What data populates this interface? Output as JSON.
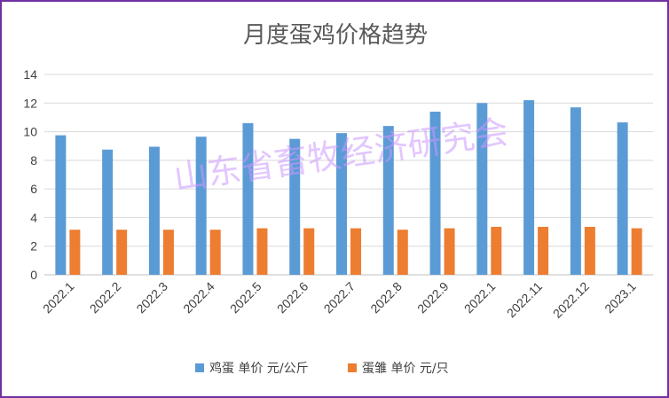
{
  "chart_data": {
    "type": "bar",
    "title": "月度蛋鸡价格趋势",
    "watermark": "山东省畜牧经济研究会",
    "categories": [
      "2022.1",
      "2022.2",
      "2022.3",
      "2022.4",
      "2022.5",
      "2022.6",
      "2022.7",
      "2022.8",
      "2022.9",
      "2022.1",
      "2022.11",
      "2022.12",
      "2023.1"
    ],
    "series": [
      {
        "name": "鸡蛋 单价 元/公斤",
        "color": "#5b9bd5",
        "values": [
          9.75,
          8.75,
          8.95,
          9.65,
          10.6,
          9.5,
          9.9,
          10.4,
          11.4,
          12.0,
          12.2,
          11.7,
          10.65
        ]
      },
      {
        "name": "蛋雏 单价 元/只",
        "color": "#ed7d31",
        "values": [
          3.15,
          3.15,
          3.15,
          3.15,
          3.25,
          3.25,
          3.25,
          3.15,
          3.25,
          3.35,
          3.35,
          3.35,
          3.25
        ]
      }
    ],
    "ylim": [
      0,
      14
    ],
    "yticks": [
      0,
      2,
      4,
      6,
      8,
      10,
      12,
      14
    ],
    "grid": true,
    "legend": "bottom"
  }
}
